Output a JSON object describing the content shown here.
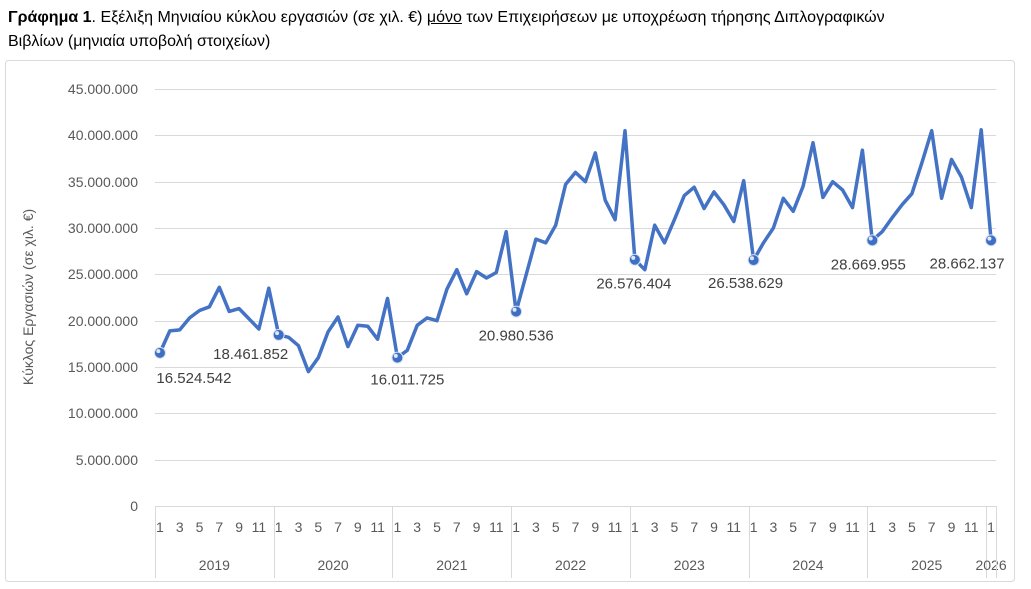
{
  "chart_data": {
    "type": "line",
    "title": {
      "figure_number": "Γράφημα 1",
      "text_1": ". Εξέλιξη Μηνιαίου κύκλου εργασιών (σε χιλ. €) ",
      "underlined": "μόνο",
      "text_2": " των Επιχειρήσεων με υποχρέωση τήρησης Διπλογραφικών",
      "text_3": "Βιβλίων (μηνιαία υποβολή στοιχείων)"
    },
    "ylabel": "Κύκλος Εργασιών (σε χιλ. €)",
    "xlabel": "",
    "ylim": [
      0,
      45000000
    ],
    "y_ticks": [
      0,
      5000000,
      10000000,
      15000000,
      20000000,
      25000000,
      30000000,
      35000000,
      40000000,
      45000000
    ],
    "y_tick_labels": [
      "0",
      "5.000.000",
      "10.000.000",
      "15.000.000",
      "20.000.000",
      "25.000.000",
      "30.000.000",
      "35.000.000",
      "40.000.000",
      "45.000.000"
    ],
    "grid": true,
    "colors": {
      "line": "#4472C4",
      "marker": "#3F6FC4",
      "grid": "#D9D9D9",
      "axis_text": "#595959",
      "data_label_text": "#404040"
    },
    "x_axis": {
      "years": [
        {
          "label": "2019",
          "month_tick_labels": [
            "1",
            "3",
            "5",
            "7",
            "9",
            "11"
          ]
        },
        {
          "label": "2020",
          "month_tick_labels": [
            "1",
            "3",
            "5",
            "7",
            "9",
            "11"
          ]
        },
        {
          "label": "2021",
          "month_tick_labels": [
            "1",
            "3",
            "5",
            "7",
            "9",
            "11"
          ]
        },
        {
          "label": "2022",
          "month_tick_labels": [
            "1",
            "3",
            "5",
            "7",
            "9",
            "11"
          ]
        },
        {
          "label": "2023",
          "month_tick_labels": [
            "1",
            "3",
            "5",
            "7",
            "9",
            "11"
          ]
        },
        {
          "label": "2024",
          "month_tick_labels": [
            "1",
            "3",
            "5",
            "7",
            "9",
            "11"
          ]
        },
        {
          "label": "2025",
          "month_tick_labels": [
            "1",
            "3",
            "5",
            "7",
            "9",
            "11"
          ]
        },
        {
          "label": "2026",
          "month_tick_labels": [
            "1"
          ]
        }
      ]
    },
    "series": [
      {
        "points": [
          {
            "year": 2019,
            "month": 1,
            "value": 16524542,
            "label": "16.524.542"
          },
          {
            "year": 2019,
            "month": 2,
            "value": 18900000
          },
          {
            "year": 2019,
            "month": 3,
            "value": 19000000
          },
          {
            "year": 2019,
            "month": 4,
            "value": 20300000
          },
          {
            "year": 2019,
            "month": 5,
            "value": 21100000
          },
          {
            "year": 2019,
            "month": 6,
            "value": 21500000
          },
          {
            "year": 2019,
            "month": 7,
            "value": 23600000
          },
          {
            "year": 2019,
            "month": 8,
            "value": 21000000
          },
          {
            "year": 2019,
            "month": 9,
            "value": 21300000
          },
          {
            "year": 2019,
            "month": 10,
            "value": 20200000
          },
          {
            "year": 2019,
            "month": 11,
            "value": 19100000
          },
          {
            "year": 2019,
            "month": 12,
            "value": 23500000
          },
          {
            "year": 2020,
            "month": 1,
            "value": 18461852,
            "label": "18.461.852"
          },
          {
            "year": 2020,
            "month": 2,
            "value": 18200000
          },
          {
            "year": 2020,
            "month": 3,
            "value": 17300000
          },
          {
            "year": 2020,
            "month": 4,
            "value": 14500000
          },
          {
            "year": 2020,
            "month": 5,
            "value": 16000000
          },
          {
            "year": 2020,
            "month": 6,
            "value": 18800000
          },
          {
            "year": 2020,
            "month": 7,
            "value": 20400000
          },
          {
            "year": 2020,
            "month": 8,
            "value": 17200000
          },
          {
            "year": 2020,
            "month": 9,
            "value": 19500000
          },
          {
            "year": 2020,
            "month": 10,
            "value": 19400000
          },
          {
            "year": 2020,
            "month": 11,
            "value": 18000000
          },
          {
            "year": 2020,
            "month": 12,
            "value": 22400000
          },
          {
            "year": 2021,
            "month": 1,
            "value": 16011725,
            "label": "16.011.725"
          },
          {
            "year": 2021,
            "month": 2,
            "value": 16800000
          },
          {
            "year": 2021,
            "month": 3,
            "value": 19500000
          },
          {
            "year": 2021,
            "month": 4,
            "value": 20300000
          },
          {
            "year": 2021,
            "month": 5,
            "value": 20000000
          },
          {
            "year": 2021,
            "month": 6,
            "value": 23400000
          },
          {
            "year": 2021,
            "month": 7,
            "value": 25500000
          },
          {
            "year": 2021,
            "month": 8,
            "value": 22900000
          },
          {
            "year": 2021,
            "month": 9,
            "value": 25300000
          },
          {
            "year": 2021,
            "month": 10,
            "value": 24600000
          },
          {
            "year": 2021,
            "month": 11,
            "value": 25200000
          },
          {
            "year": 2021,
            "month": 12,
            "value": 29600000
          },
          {
            "year": 2022,
            "month": 1,
            "value": 20980536,
            "label": "20.980.536"
          },
          {
            "year": 2022,
            "month": 2,
            "value": 24900000
          },
          {
            "year": 2022,
            "month": 3,
            "value": 28800000
          },
          {
            "year": 2022,
            "month": 4,
            "value": 28400000
          },
          {
            "year": 2022,
            "month": 5,
            "value": 30300000
          },
          {
            "year": 2022,
            "month": 6,
            "value": 34700000
          },
          {
            "year": 2022,
            "month": 7,
            "value": 36000000
          },
          {
            "year": 2022,
            "month": 8,
            "value": 35000000
          },
          {
            "year": 2022,
            "month": 9,
            "value": 38100000
          },
          {
            "year": 2022,
            "month": 10,
            "value": 33000000
          },
          {
            "year": 2022,
            "month": 11,
            "value": 30900000
          },
          {
            "year": 2022,
            "month": 12,
            "value": 40500000
          },
          {
            "year": 2023,
            "month": 1,
            "value": 26576404,
            "label": "26.576.404"
          },
          {
            "year": 2023,
            "month": 2,
            "value": 25500000
          },
          {
            "year": 2023,
            "month": 3,
            "value": 30300000
          },
          {
            "year": 2023,
            "month": 4,
            "value": 28400000
          },
          {
            "year": 2023,
            "month": 5,
            "value": 30900000
          },
          {
            "year": 2023,
            "month": 6,
            "value": 33500000
          },
          {
            "year": 2023,
            "month": 7,
            "value": 34400000
          },
          {
            "year": 2023,
            "month": 8,
            "value": 32100000
          },
          {
            "year": 2023,
            "month": 9,
            "value": 33900000
          },
          {
            "year": 2023,
            "month": 10,
            "value": 32500000
          },
          {
            "year": 2023,
            "month": 11,
            "value": 30700000
          },
          {
            "year": 2023,
            "month": 12,
            "value": 35100000
          },
          {
            "year": 2024,
            "month": 1,
            "value": 26538629,
            "label": "26.538.629"
          },
          {
            "year": 2024,
            "month": 2,
            "value": 28400000
          },
          {
            "year": 2024,
            "month": 3,
            "value": 30000000
          },
          {
            "year": 2024,
            "month": 4,
            "value": 33200000
          },
          {
            "year": 2024,
            "month": 5,
            "value": 31800000
          },
          {
            "year": 2024,
            "month": 6,
            "value": 34500000
          },
          {
            "year": 2024,
            "month": 7,
            "value": 39200000
          },
          {
            "year": 2024,
            "month": 8,
            "value": 33300000
          },
          {
            "year": 2024,
            "month": 9,
            "value": 35000000
          },
          {
            "year": 2024,
            "month": 10,
            "value": 34100000
          },
          {
            "year": 2024,
            "month": 11,
            "value": 32200000
          },
          {
            "year": 2024,
            "month": 12,
            "value": 38400000
          },
          {
            "year": 2025,
            "month": 1,
            "value": 28669955,
            "label": "28.669.955"
          },
          {
            "year": 2025,
            "month": 2,
            "value": 29600000
          },
          {
            "year": 2025,
            "month": 3,
            "value": 31100000
          },
          {
            "year": 2025,
            "month": 4,
            "value": 32500000
          },
          {
            "year": 2025,
            "month": 5,
            "value": 33700000
          },
          {
            "year": 2025,
            "month": 6,
            "value": 37000000
          },
          {
            "year": 2025,
            "month": 7,
            "value": 40500000
          },
          {
            "year": 2025,
            "month": 8,
            "value": 33200000
          },
          {
            "year": 2025,
            "month": 9,
            "value": 37400000
          },
          {
            "year": 2025,
            "month": 10,
            "value": 35500000
          },
          {
            "year": 2025,
            "month": 11,
            "value": 32200000
          },
          {
            "year": 2025,
            "month": 12,
            "value": 40600000
          },
          {
            "year": 2026,
            "month": 1,
            "value": 28662137,
            "label": "28.662.137"
          }
        ]
      }
    ]
  }
}
